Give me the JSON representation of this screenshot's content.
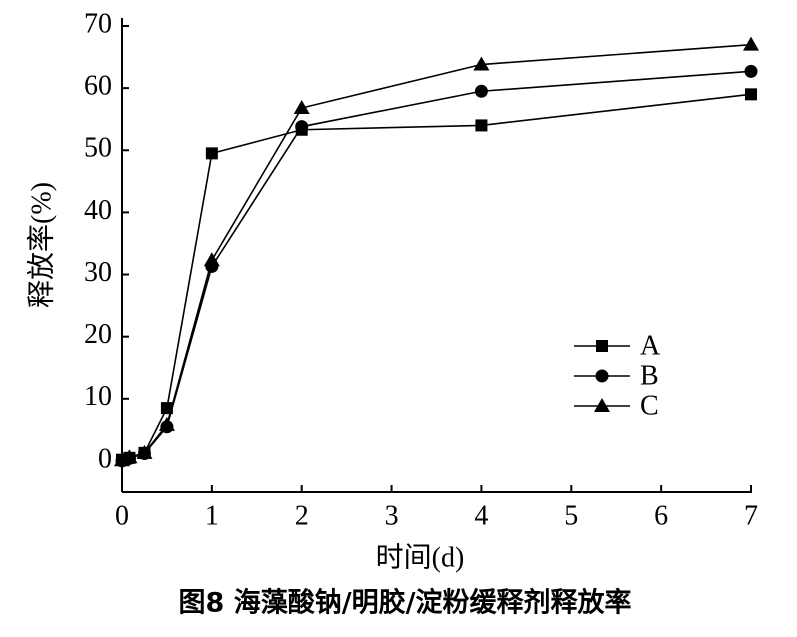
{
  "chart_data": {
    "type": "line",
    "xlabel": "时间(d)",
    "ylabel": "释放率(%)",
    "caption": "图8  海藻酸钠/明胶/淀粉缓释剂释放率",
    "x": [
      0,
      0.083,
      0.25,
      0.5,
      1,
      2,
      4,
      7
    ],
    "series": [
      {
        "name": "A",
        "color": "#000000",
        "marker": "square",
        "values": [
          0.2,
          0.5,
          1.3,
          8.5,
          49.5,
          53.3,
          54,
          59
        ]
      },
      {
        "name": "B",
        "color": "#000000",
        "marker": "circle",
        "values": [
          0,
          0.4,
          1.2,
          5.5,
          31.3,
          53.8,
          59.5,
          62.7
        ]
      },
      {
        "name": "C",
        "color": "#000000",
        "marker": "triangle",
        "values": [
          0.1,
          0.6,
          1.3,
          5.8,
          32.3,
          56.8,
          63.8,
          67
        ]
      }
    ],
    "xlim": [
      0,
      7
    ],
    "xticks": [
      0,
      1,
      2,
      3,
      4,
      5,
      6,
      7
    ],
    "ylim": [
      -5,
      70
    ],
    "yticks": [
      0,
      10,
      20,
      30,
      40,
      50,
      60,
      70
    ],
    "grid": false
  }
}
